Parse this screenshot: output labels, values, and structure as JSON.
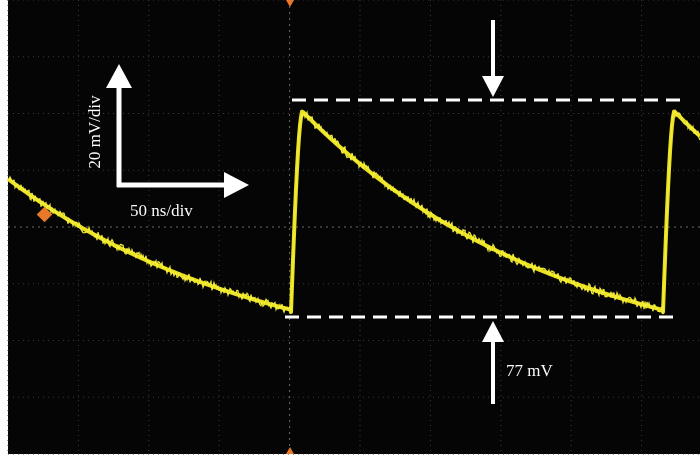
{
  "annotations": {
    "vertical_scale": "20 mV/div",
    "horizontal_scale": "50 ns/div",
    "amplitude": "77 mV"
  }
}
